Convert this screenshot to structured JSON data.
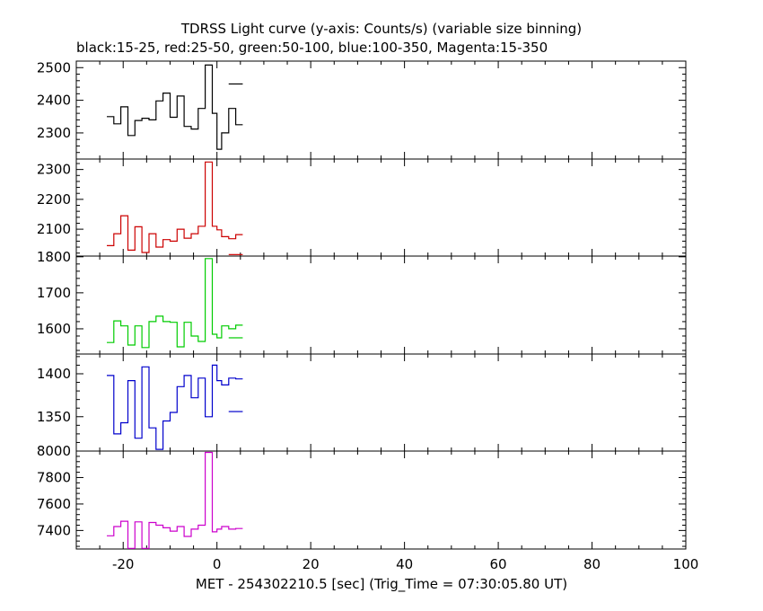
{
  "chart_data": {
    "type": "line",
    "title": "TDRSS Light curve (y-axis: Counts/s) (variable size binning)",
    "subtitle": "black:15-25, red:25-50, green:50-100, blue:100-350, Magenta:15-350",
    "xlabel": "MET - 254302210.5 [sec] (Trig_Time = 07:30:05.80 UT)",
    "xlim": [
      -30,
      100
    ],
    "xticks": [
      -20,
      0,
      20,
      40,
      60,
      80,
      100
    ],
    "bin_edges": [
      -23.5,
      -22,
      -20.5,
      -19,
      -17.5,
      -16,
      -14.5,
      -13,
      -11.5,
      -10,
      -8.5,
      -7,
      -5.5,
      -4,
      -2.5,
      -1,
      0,
      1,
      2.5,
      4,
      5.5,
      7,
      8.5
    ],
    "panels": [
      {
        "name": "15-25",
        "color": "#000000",
        "ylim": [
          2220,
          2520
        ],
        "yticks": [
          2300,
          2400,
          2500
        ],
        "values": [
          2350,
          2328,
          2380,
          2292,
          2338,
          2345,
          2340,
          2398,
          2422,
          2348,
          2413,
          2320,
          2312,
          2375,
          2508,
          2360,
          2250,
          2300,
          2375,
          2325
        ],
        "extra_segment": {
          "x": [
            2.5,
            5.5
          ],
          "y": 2450
        }
      },
      {
        "name": "25-50",
        "color": "#cc0000",
        "ylim": [
          2010,
          2335
        ],
        "yticks": [
          2100,
          2200,
          2300
        ],
        "values": [
          2045,
          2085,
          2145,
          2030,
          2108,
          2022,
          2085,
          2040,
          2065,
          2060,
          2100,
          2070,
          2085,
          2110,
          2325,
          2110,
          2098,
          2075,
          2068,
          2082
        ],
        "extra_segment": {
          "x": [
            2.5,
            5.5
          ],
          "y": 2015
        }
      },
      {
        "name": "50-100",
        "color": "#00cc00",
        "ylim": [
          1530,
          1802
        ],
        "yticks": [
          1600,
          1700,
          1800
        ],
        "values": [
          1562,
          1622,
          1608,
          1555,
          1608,
          1548,
          1620,
          1635,
          1620,
          1618,
          1550,
          1618,
          1580,
          1565,
          1795,
          1585,
          1575,
          1608,
          1600,
          1610
        ],
        "extra_segment": {
          "x": [
            2.5,
            5.5
          ],
          "y": 1575
        }
      },
      {
        "name": "100-350",
        "color": "#0000cc",
        "ylim": [
          1310,
          1423
        ],
        "yticks": [
          1350,
          1400
        ],
        "values": [
          1398,
          1330,
          1343,
          1392,
          1325,
          1408,
          1337,
          1312,
          1345,
          1355,
          1385,
          1398,
          1372,
          1395,
          1350,
          1410,
          1392,
          1387,
          1395,
          1394
        ],
        "extra_segment": {
          "x": [
            2.5,
            5.5
          ],
          "y": 1356
        }
      },
      {
        "name": "15-350",
        "color": "#cc00cc",
        "ylim": [
          7260,
          8000
        ],
        "yticks": [
          7400,
          7600,
          7800,
          8000
        ],
        "values": [
          7360,
          7430,
          7470,
          7265,
          7465,
          7265,
          7460,
          7440,
          7420,
          7395,
          7430,
          7355,
          7410,
          7440,
          7990,
          7390,
          7410,
          7430,
          7410,
          7415
        ],
        "extra_segment": null
      }
    ]
  }
}
